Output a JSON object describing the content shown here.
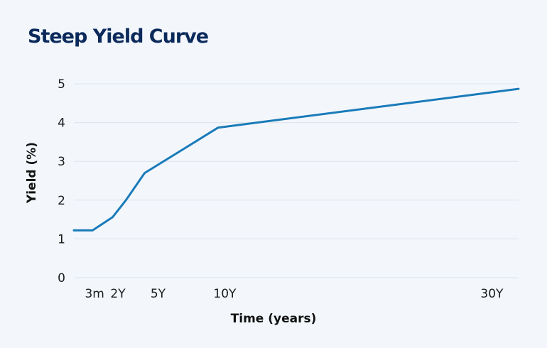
{
  "chart_data": {
    "type": "line",
    "title": "Steep Yield Curve",
    "xlabel": "Time (years)",
    "ylabel": "Yield (%)",
    "x_tick_labels": [
      {
        "label": "3m",
        "x": 0.25
      },
      {
        "label": "2Y",
        "x": 2
      },
      {
        "label": "5Y",
        "x": 5
      },
      {
        "label": "10Y",
        "x": 10
      },
      {
        "label": "30Y",
        "x": 30
      }
    ],
    "xlim": [
      -1.3,
      32
    ],
    "ylim": [
      0,
      5
    ],
    "y_ticks": [
      0,
      1,
      2,
      3,
      4,
      5
    ],
    "grid": true,
    "legend": "none",
    "series": [
      {
        "color": "#1a7bb9",
        "points": [
          {
            "x": -1.3,
            "y": 1.22
          },
          {
            "x": 0.1,
            "y": 1.22
          },
          {
            "x": 1.6,
            "y": 1.56
          },
          {
            "x": 2.6,
            "y": 2.0
          },
          {
            "x": 4.0,
            "y": 2.7
          },
          {
            "x": 9.5,
            "y": 3.87
          },
          {
            "x": 32.0,
            "y": 4.87
          }
        ]
      }
    ],
    "colors": {
      "title": "#0b2a5b",
      "grid": "#dde3ea",
      "line": "#1a7bb9"
    }
  }
}
